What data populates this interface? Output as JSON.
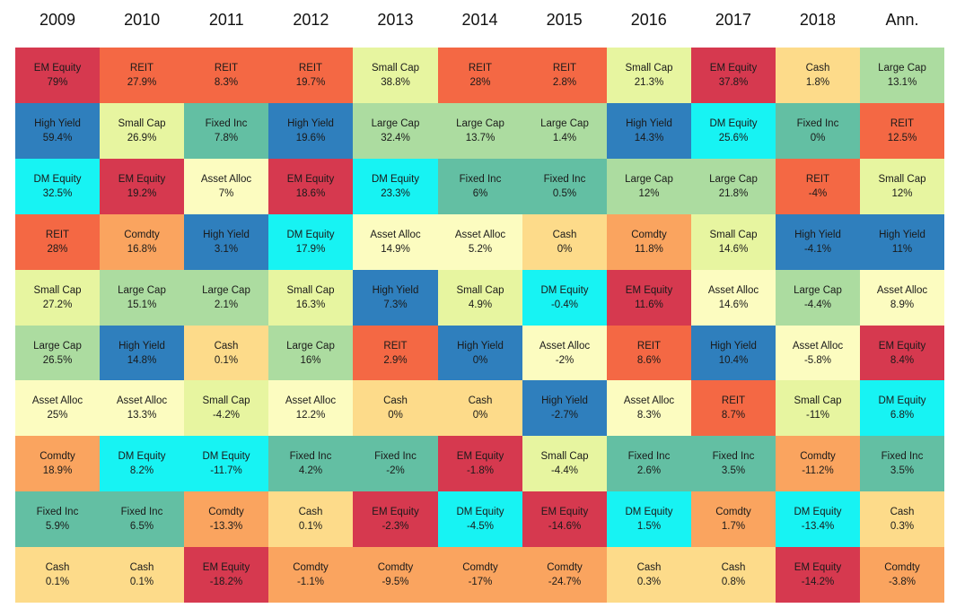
{
  "chart_data": {
    "type": "heatmap",
    "title": "",
    "columns": [
      "2009",
      "2010",
      "2011",
      "2012",
      "2013",
      "2014",
      "2015",
      "2016",
      "2017",
      "2018",
      "Ann."
    ],
    "colors": {
      "EM Equity": "#d6394f",
      "REIT": "#f46844",
      "Small Cap": "#e7f5a0",
      "Cash": "#fddb8a",
      "Large Cap": "#acdca0",
      "High Yield": "#2f7fbd",
      "Fixed Inc": "#63bfa3",
      "DM Equity": "#17f3f3",
      "Asset Alloc": "#fcfcc0",
      "Comdty": "#faa45f"
    },
    "grid": [
      [
        {
          "label": "EM Equity",
          "value": "79%"
        },
        {
          "label": "High Yield",
          "value": "59.4%"
        },
        {
          "label": "DM Equity",
          "value": "32.5%"
        },
        {
          "label": "REIT",
          "value": "28%"
        },
        {
          "label": "Small Cap",
          "value": "27.2%"
        },
        {
          "label": "Large Cap",
          "value": "26.5%"
        },
        {
          "label": "Asset Alloc",
          "value": "25%"
        },
        {
          "label": "Comdty",
          "value": "18.9%"
        },
        {
          "label": "Fixed Inc",
          "value": "5.9%"
        },
        {
          "label": "Cash",
          "value": "0.1%"
        }
      ],
      [
        {
          "label": "REIT",
          "value": "27.9%"
        },
        {
          "label": "Small Cap",
          "value": "26.9%"
        },
        {
          "label": "EM Equity",
          "value": "19.2%"
        },
        {
          "label": "Comdty",
          "value": "16.8%"
        },
        {
          "label": "Large Cap",
          "value": "15.1%"
        },
        {
          "label": "High Yield",
          "value": "14.8%"
        },
        {
          "label": "Asset Alloc",
          "value": "13.3%"
        },
        {
          "label": "DM Equity",
          "value": "8.2%"
        },
        {
          "label": "Fixed Inc",
          "value": "6.5%"
        },
        {
          "label": "Cash",
          "value": "0.1%"
        }
      ],
      [
        {
          "label": "REIT",
          "value": "8.3%"
        },
        {
          "label": "Fixed Inc",
          "value": "7.8%"
        },
        {
          "label": "Asset Alloc",
          "value": "7%"
        },
        {
          "label": "High Yield",
          "value": "3.1%"
        },
        {
          "label": "Large Cap",
          "value": "2.1%"
        },
        {
          "label": "Cash",
          "value": "0.1%"
        },
        {
          "label": "Small Cap",
          "value": "-4.2%"
        },
        {
          "label": "DM Equity",
          "value": "-11.7%"
        },
        {
          "label": "Comdty",
          "value": "-13.3%"
        },
        {
          "label": "EM Equity",
          "value": "-18.2%"
        }
      ],
      [
        {
          "label": "REIT",
          "value": "19.7%"
        },
        {
          "label": "High Yield",
          "value": "19.6%"
        },
        {
          "label": "EM Equity",
          "value": "18.6%"
        },
        {
          "label": "DM Equity",
          "value": "17.9%"
        },
        {
          "label": "Small Cap",
          "value": "16.3%"
        },
        {
          "label": "Large Cap",
          "value": "16%"
        },
        {
          "label": "Asset Alloc",
          "value": "12.2%"
        },
        {
          "label": "Fixed Inc",
          "value": "4.2%"
        },
        {
          "label": "Cash",
          "value": "0.1%"
        },
        {
          "label": "Comdty",
          "value": "-1.1%"
        }
      ],
      [
        {
          "label": "Small Cap",
          "value": "38.8%"
        },
        {
          "label": "Large Cap",
          "value": "32.4%"
        },
        {
          "label": "DM Equity",
          "value": "23.3%"
        },
        {
          "label": "Asset Alloc",
          "value": "14.9%"
        },
        {
          "label": "High Yield",
          "value": "7.3%"
        },
        {
          "label": "REIT",
          "value": "2.9%"
        },
        {
          "label": "Cash",
          "value": "0%"
        },
        {
          "label": "Fixed Inc",
          "value": "-2%"
        },
        {
          "label": "EM Equity",
          "value": "-2.3%"
        },
        {
          "label": "Comdty",
          "value": "-9.5%"
        }
      ],
      [
        {
          "label": "REIT",
          "value": "28%"
        },
        {
          "label": "Large Cap",
          "value": "13.7%"
        },
        {
          "label": "Fixed Inc",
          "value": "6%"
        },
        {
          "label": "Asset Alloc",
          "value": "5.2%"
        },
        {
          "label": "Small Cap",
          "value": "4.9%"
        },
        {
          "label": "High Yield",
          "value": "0%"
        },
        {
          "label": "Cash",
          "value": "0%"
        },
        {
          "label": "EM Equity",
          "value": "-1.8%"
        },
        {
          "label": "DM Equity",
          "value": "-4.5%"
        },
        {
          "label": "Comdty",
          "value": "-17%"
        }
      ],
      [
        {
          "label": "REIT",
          "value": "2.8%"
        },
        {
          "label": "Large Cap",
          "value": "1.4%"
        },
        {
          "label": "Fixed Inc",
          "value": "0.5%"
        },
        {
          "label": "Cash",
          "value": "0%"
        },
        {
          "label": "DM Equity",
          "value": "-0.4%"
        },
        {
          "label": "Asset Alloc",
          "value": "-2%"
        },
        {
          "label": "High Yield",
          "value": "-2.7%"
        },
        {
          "label": "Small Cap",
          "value": "-4.4%"
        },
        {
          "label": "EM Equity",
          "value": "-14.6%"
        },
        {
          "label": "Comdty",
          "value": "-24.7%"
        }
      ],
      [
        {
          "label": "Small Cap",
          "value": "21.3%"
        },
        {
          "label": "High Yield",
          "value": "14.3%"
        },
        {
          "label": "Large Cap",
          "value": "12%"
        },
        {
          "label": "Comdty",
          "value": "11.8%"
        },
        {
          "label": "EM Equity",
          "value": "11.6%"
        },
        {
          "label": "REIT",
          "value": "8.6%"
        },
        {
          "label": "Asset Alloc",
          "value": "8.3%"
        },
        {
          "label": "Fixed Inc",
          "value": "2.6%"
        },
        {
          "label": "DM Equity",
          "value": "1.5%"
        },
        {
          "label": "Cash",
          "value": "0.3%"
        }
      ],
      [
        {
          "label": "EM Equity",
          "value": "37.8%"
        },
        {
          "label": "DM Equity",
          "value": "25.6%"
        },
        {
          "label": "Large Cap",
          "value": "21.8%"
        },
        {
          "label": "Small Cap",
          "value": "14.6%"
        },
        {
          "label": "Asset Alloc",
          "value": "14.6%"
        },
        {
          "label": "High Yield",
          "value": "10.4%"
        },
        {
          "label": "REIT",
          "value": "8.7%"
        },
        {
          "label": "Fixed Inc",
          "value": "3.5%"
        },
        {
          "label": "Comdty",
          "value": "1.7%"
        },
        {
          "label": "Cash",
          "value": "0.8%"
        }
      ],
      [
        {
          "label": "Cash",
          "value": "1.8%"
        },
        {
          "label": "Fixed Inc",
          "value": "0%"
        },
        {
          "label": "REIT",
          "value": "-4%"
        },
        {
          "label": "High Yield",
          "value": "-4.1%"
        },
        {
          "label": "Large Cap",
          "value": "-4.4%"
        },
        {
          "label": "Asset Alloc",
          "value": "-5.8%"
        },
        {
          "label": "Small Cap",
          "value": "-11%"
        },
        {
          "label": "Comdty",
          "value": "-11.2%"
        },
        {
          "label": "DM Equity",
          "value": "-13.4%"
        },
        {
          "label": "EM Equity",
          "value": "-14.2%"
        }
      ],
      [
        {
          "label": "Large Cap",
          "value": "13.1%"
        },
        {
          "label": "REIT",
          "value": "12.5%"
        },
        {
          "label": "Small Cap",
          "value": "12%"
        },
        {
          "label": "High Yield",
          "value": "11%"
        },
        {
          "label": "Asset Alloc",
          "value": "8.9%"
        },
        {
          "label": "EM Equity",
          "value": "8.4%"
        },
        {
          "label": "DM Equity",
          "value": "6.8%"
        },
        {
          "label": "Fixed Inc",
          "value": "3.5%"
        },
        {
          "label": "Cash",
          "value": "0.3%"
        },
        {
          "label": "Comdty",
          "value": "-3.8%"
        }
      ]
    ]
  }
}
